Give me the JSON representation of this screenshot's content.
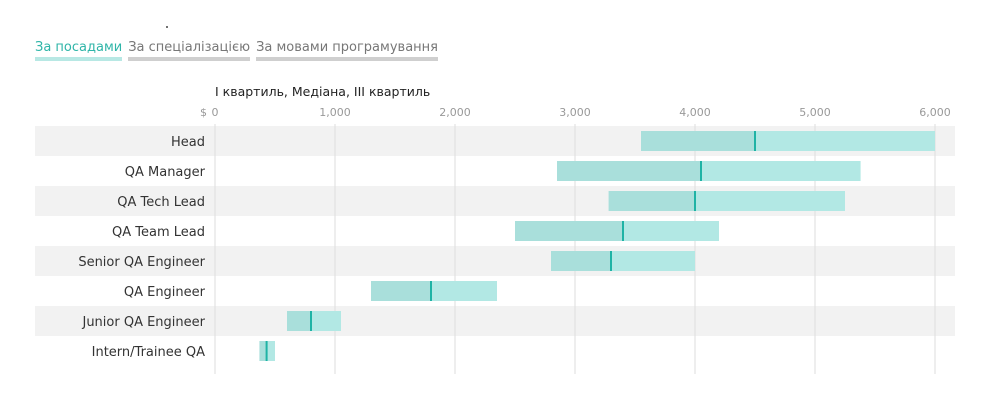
{
  "tabs": [
    {
      "label": "За посадами",
      "active": true
    },
    {
      "label": "За спеціалізацією",
      "active": false
    },
    {
      "label": "За мовами програмування",
      "active": false
    }
  ],
  "colors": {
    "band_even": "#f2f2f2",
    "band_odd": "#ffffff",
    "bar_fill": "#b2e8e4",
    "bar_overlap": "#a9dfdb",
    "median": "#1fb3a5",
    "grid": "#dddddd"
  },
  "chart_data": {
    "type": "range-bar",
    "title": "I квартиль, Медіана, III квартиль",
    "x_prefix": "$",
    "xlim": [
      0,
      6000
    ],
    "ticks": [
      0,
      1000,
      2000,
      3000,
      4000,
      5000,
      6000
    ],
    "tick_labels": [
      "0",
      "1,000",
      "2,000",
      "3,000",
      "4,000",
      "5,000",
      "6,000"
    ],
    "categories": [
      "Head",
      "QA Manager",
      "QA Tech Lead",
      "QA Team Lead",
      "Senior QA Engineer",
      "QA Engineer",
      "Junior QA Engineer",
      "Intern/Trainee QA"
    ],
    "q1": [
      3550,
      2850,
      3280,
      2500,
      2800,
      1300,
      600,
      370
    ],
    "median": [
      4500,
      4050,
      4000,
      3400,
      3300,
      1800,
      800,
      430
    ],
    "q3": [
      6000,
      5380,
      5250,
      4200,
      4000,
      2350,
      1050,
      500
    ]
  }
}
